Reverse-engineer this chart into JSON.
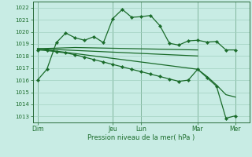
{
  "bg_color": "#c8ece4",
  "grid_color": "#a0d0c0",
  "line_color": "#1a6b2a",
  "ylabel": "Pression niveau de la mer( hPa )",
  "ylim": [
    1012.5,
    1022.5
  ],
  "yticks": [
    1013,
    1014,
    1015,
    1016,
    1017,
    1018,
    1019,
    1020,
    1021,
    1022
  ],
  "day_labels": [
    "Dim",
    "Jeu",
    "Lun",
    "Mar",
    "Mer"
  ],
  "day_positions": [
    0,
    8,
    11,
    17,
    21
  ],
  "xlim": [
    -0.5,
    22.5
  ],
  "line1_x": [
    0,
    1,
    2,
    3,
    4,
    5,
    6,
    7,
    8,
    9,
    10,
    11,
    12,
    13,
    14,
    15,
    16,
    17,
    18,
    19,
    20,
    21
  ],
  "line1_y": [
    1016.0,
    1016.9,
    1019.1,
    1019.9,
    1019.5,
    1019.3,
    1019.6,
    1019.1,
    1021.1,
    1021.85,
    1021.2,
    1021.25,
    1021.35,
    1020.5,
    1019.05,
    1018.9,
    1019.25,
    1019.3,
    1019.15,
    1019.2,
    1018.5,
    1018.5
  ],
  "line2_x": [
    0,
    4,
    17
  ],
  "line2_y": [
    1018.6,
    1018.7,
    1018.5
  ],
  "line3_x": [
    0,
    17
  ],
  "line3_y": [
    1018.6,
    1018.0
  ],
  "line4_x": [
    0,
    1,
    2,
    3,
    4,
    5,
    6,
    7,
    8,
    9,
    10,
    11,
    12,
    13,
    14,
    15,
    16,
    17,
    18,
    19,
    20,
    21
  ],
  "line4_y": [
    1018.5,
    1018.45,
    1018.35,
    1018.25,
    1018.1,
    1017.9,
    1017.7,
    1017.5,
    1017.3,
    1017.1,
    1016.9,
    1016.7,
    1016.5,
    1016.3,
    1016.1,
    1015.9,
    1016.0,
    1016.9,
    1016.2,
    1015.5,
    1012.85,
    1013.05
  ],
  "line5_x": [
    0,
    17,
    18,
    19,
    20,
    21
  ],
  "line5_y": [
    1018.6,
    1016.9,
    1016.3,
    1015.6,
    1014.8,
    1014.6
  ]
}
